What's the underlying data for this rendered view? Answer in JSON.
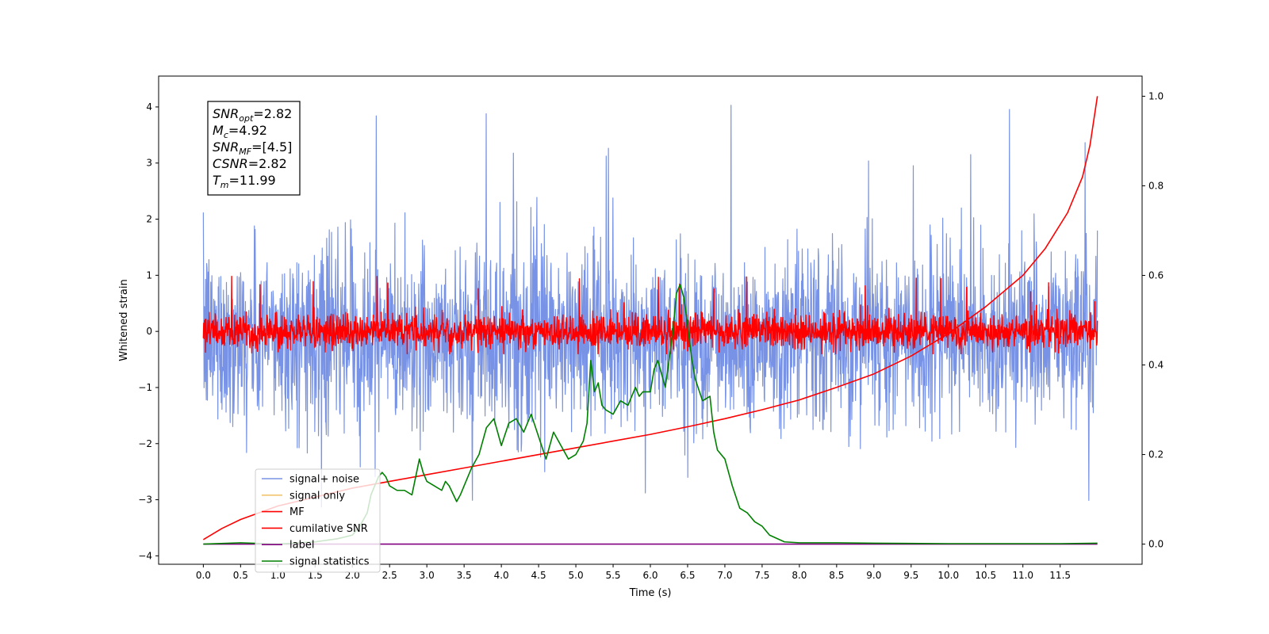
{
  "chart_data": {
    "type": "line",
    "xlabel": "Time (s)",
    "ylabel": "Whitened strain",
    "xlim": [
      -0.6,
      12.6
    ],
    "ylim": [
      -4.15,
      4.55
    ],
    "y2lim": [
      -0.045,
      1.045
    ],
    "x_ticks": [
      0.0,
      0.5,
      1.0,
      1.5,
      2.0,
      2.5,
      3.0,
      3.5,
      4.0,
      4.5,
      5.0,
      5.5,
      6.0,
      6.5,
      7.0,
      7.5,
      8.0,
      8.5,
      9.0,
      9.5,
      10.0,
      10.5,
      11.0,
      11.5
    ],
    "x_tick_labels": [
      "0.0",
      "0.5",
      "1.0",
      "1.5",
      "2.0",
      "2.5",
      "3.0",
      "3.5",
      "4.0",
      "4.5",
      "5.0",
      "5.5",
      "6.0",
      "6.5",
      "7.0",
      "7.5",
      "8.0",
      "8.5",
      "9.0",
      "9.5",
      "10.0",
      "10.5",
      "11.0",
      "11.5"
    ],
    "y_ticks": [
      -4,
      -3,
      -2,
      -1,
      0,
      1,
      2,
      3,
      4
    ],
    "y_tick_labels": [
      "−4",
      "−3",
      "−2",
      "−1",
      "0",
      "1",
      "2",
      "3",
      "4"
    ],
    "y2_ticks": [
      0.0,
      0.2,
      0.4,
      0.6,
      0.8,
      1.0
    ],
    "y2_tick_labels": [
      "0.0",
      "0.2",
      "0.4",
      "0.6",
      "0.8",
      "1.0"
    ],
    "grid": false,
    "legend_position": "lower-left",
    "annotation": {
      "lines": [
        {
          "base": "SNR",
          "sub": "opt",
          "value": "=2.82"
        },
        {
          "base": "M",
          "sub": "c",
          "value": "=4.92"
        },
        {
          "base": "SNR",
          "sub": "MF",
          "value": "=[4.5]"
        },
        {
          "base": "CSNR",
          "sub": "",
          "value": "=2.82"
        },
        {
          "base": "T",
          "sub": "m",
          "value": "=11.99"
        }
      ]
    },
    "series": [
      {
        "name": "signal+ noise",
        "axis": "left",
        "color": "#7893e6",
        "kind": "noise",
        "x_range": [
          0.0,
          12.0
        ],
        "center": -0.1,
        "spread": 0.8,
        "max_excursion": [
          -3.75,
          4.15
        ]
      },
      {
        "name": "signal only",
        "axis": "left",
        "color": "#f2c46d",
        "kind": "line",
        "x": [],
        "y": []
      },
      {
        "name": "MF",
        "axis": "left",
        "color": "#ff0000",
        "kind": "noise",
        "x_range": [
          0.0,
          12.0
        ],
        "center": 0.0,
        "spread": 0.16,
        "max_excursion": [
          -0.4,
          1.0
        ]
      },
      {
        "name": "cumilative SNR",
        "axis": "right",
        "color": "#ff0000",
        "kind": "line",
        "x": [
          0.0,
          0.05,
          0.25,
          0.5,
          1.0,
          1.5,
          2.0,
          2.5,
          3.0,
          3.5,
          4.0,
          4.5,
          5.0,
          5.5,
          6.0,
          6.5,
          7.0,
          7.5,
          8.0,
          8.5,
          9.0,
          9.5,
          10.0,
          10.5,
          11.0,
          11.3,
          11.6,
          11.8,
          11.9,
          12.0
        ],
        "y": [
          0.01,
          0.015,
          0.035,
          0.055,
          0.085,
          0.105,
          0.125,
          0.14,
          0.155,
          0.17,
          0.185,
          0.2,
          0.215,
          0.23,
          0.245,
          0.262,
          0.28,
          0.3,
          0.322,
          0.35,
          0.38,
          0.42,
          0.47,
          0.53,
          0.6,
          0.66,
          0.74,
          0.82,
          0.89,
          1.0
        ]
      },
      {
        "name": "label",
        "axis": "right",
        "color": "#800080",
        "kind": "line",
        "x": [
          0.0,
          12.0
        ],
        "y": [
          0.0,
          0.0
        ]
      },
      {
        "name": "signal statistics",
        "axis": "right",
        "color": "#008000",
        "kind": "line",
        "x": [
          0.0,
          0.5,
          1.0,
          1.5,
          1.8,
          2.0,
          2.1,
          2.2,
          2.25,
          2.3,
          2.35,
          2.4,
          2.45,
          2.5,
          2.6,
          2.7,
          2.8,
          2.9,
          2.95,
          3.0,
          3.1,
          3.2,
          3.25,
          3.3,
          3.4,
          3.45,
          3.5,
          3.6,
          3.7,
          3.8,
          3.9,
          4.0,
          4.1,
          4.2,
          4.3,
          4.4,
          4.5,
          4.6,
          4.7,
          4.8,
          4.9,
          5.0,
          5.1,
          5.15,
          5.2,
          5.25,
          5.3,
          5.35,
          5.4,
          5.5,
          5.6,
          5.7,
          5.75,
          5.8,
          5.85,
          5.9,
          6.0,
          6.05,
          6.1,
          6.2,
          6.3,
          6.35,
          6.4,
          6.45,
          6.5,
          6.55,
          6.6,
          6.7,
          6.8,
          6.85,
          6.9,
          7.0,
          7.1,
          7.2,
          7.3,
          7.4,
          7.5,
          7.6,
          7.8,
          8.0,
          8.5,
          9.0,
          10.0,
          11.0,
          11.5,
          12.0
        ],
        "y": [
          0.0,
          0.003,
          0.0,
          0.005,
          0.012,
          0.02,
          0.04,
          0.07,
          0.11,
          0.13,
          0.15,
          0.16,
          0.15,
          0.13,
          0.12,
          0.12,
          0.11,
          0.19,
          0.16,
          0.14,
          0.13,
          0.12,
          0.14,
          0.13,
          0.095,
          0.11,
          0.13,
          0.17,
          0.2,
          0.26,
          0.28,
          0.22,
          0.27,
          0.28,
          0.25,
          0.29,
          0.24,
          0.19,
          0.25,
          0.22,
          0.19,
          0.2,
          0.23,
          0.27,
          0.41,
          0.34,
          0.36,
          0.31,
          0.3,
          0.29,
          0.32,
          0.31,
          0.33,
          0.35,
          0.33,
          0.34,
          0.34,
          0.39,
          0.41,
          0.35,
          0.47,
          0.56,
          0.58,
          0.55,
          0.49,
          0.42,
          0.37,
          0.32,
          0.33,
          0.25,
          0.21,
          0.19,
          0.13,
          0.08,
          0.07,
          0.05,
          0.04,
          0.02,
          0.005,
          0.003,
          0.003,
          0.002,
          0.001,
          0.001,
          0.001,
          0.002
        ]
      }
    ]
  }
}
